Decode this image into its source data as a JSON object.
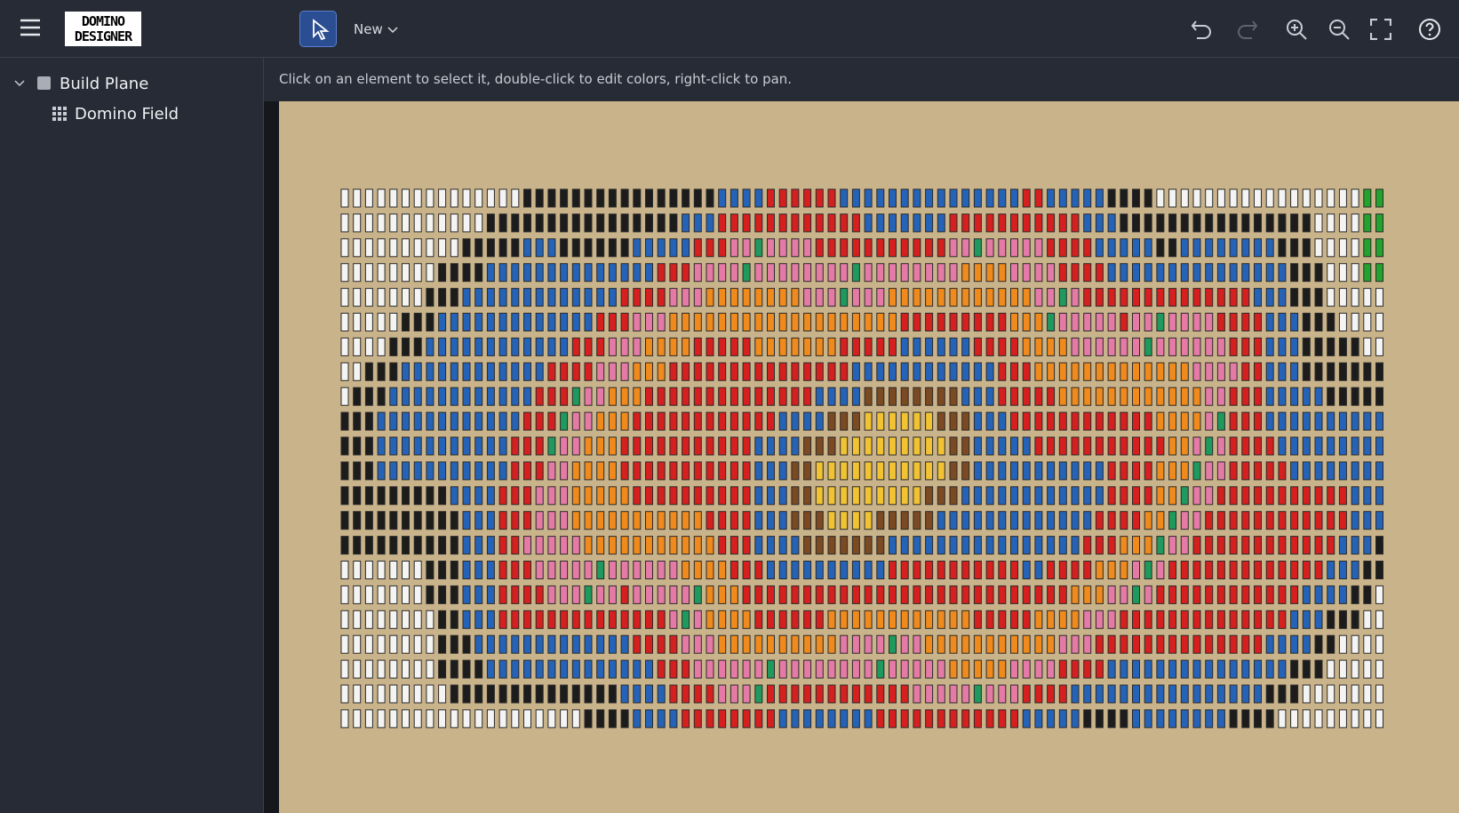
{
  "toolbar": {
    "logo": [
      "DOMINO",
      "DESIGNER"
    ],
    "new_menu": "New"
  },
  "tree": {
    "root": "Build Plane",
    "children": [
      "Domino Field"
    ]
  },
  "hint": "Click on an element to select it, double-click to edit colors, right-click to pan."
}
